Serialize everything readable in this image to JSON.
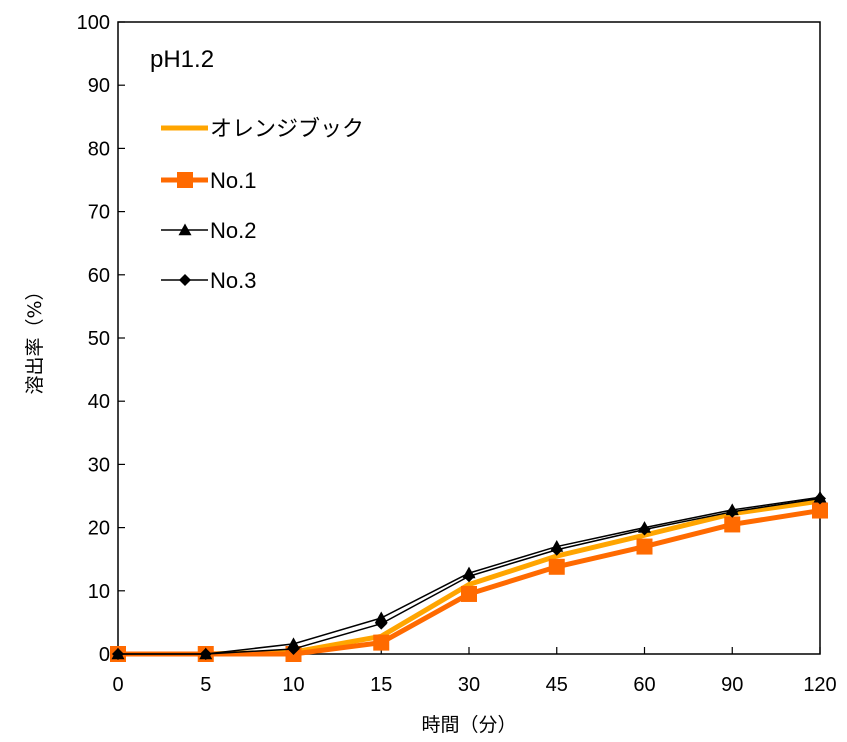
{
  "chart_data": {
    "type": "line",
    "title": "",
    "annotation": "pH1.2",
    "xlabel": "時間（分）",
    "ylabel": "溶出率（%）",
    "categories": [
      "0",
      "5",
      "10",
      "15",
      "30",
      "45",
      "60",
      "90",
      "120"
    ],
    "ylim": [
      0,
      100
    ],
    "yticks": [
      0,
      10,
      20,
      30,
      40,
      50,
      60,
      70,
      80,
      90,
      100
    ],
    "grid": false,
    "legend_position": "top-left",
    "series": [
      {
        "name": "オレンジブック",
        "color": "#FFA500",
        "marker": "none",
        "values": [
          0,
          0,
          0.3,
          2.8,
          11,
          15.5,
          18.8,
          22.2,
          24.2
        ]
      },
      {
        "name": "No.1",
        "color": "#FF6A00",
        "marker": "square",
        "values": [
          0,
          0,
          0,
          1.8,
          9.5,
          13.8,
          17,
          20.5,
          22.7
        ]
      },
      {
        "name": "No.2",
        "color": "#000000",
        "marker": "triangle",
        "values": [
          0,
          0,
          1.6,
          5.7,
          12.8,
          17,
          20,
          22.8,
          24.8
        ]
      },
      {
        "name": "No.3",
        "color": "#000000",
        "marker": "diamond",
        "values": [
          0,
          0,
          0.8,
          4.8,
          12.3,
          16.5,
          19.7,
          22.5,
          24.6
        ]
      }
    ]
  }
}
